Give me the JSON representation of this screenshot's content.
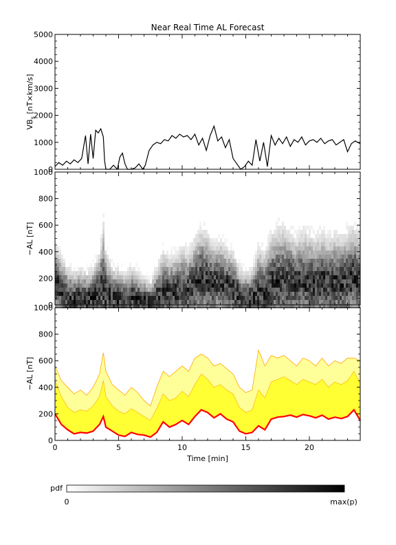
{
  "chart_data": [
    {
      "type": "line",
      "title": "Near Real Time AL Forecast",
      "ylabel_main": "VB",
      "ylabel_sub": "s",
      "ylabel_rest": " [nT×km/s]",
      "xlim": [
        0,
        24
      ],
      "ylim": [
        0,
        5000
      ],
      "yticks": [
        "0",
        "1000",
        "2000",
        "3000",
        "4000",
        "5000"
      ],
      "line_color": "#000000",
      "series": [
        {
          "x": [
            0,
            0.3,
            0.6,
            0.9,
            1.2,
            1.5,
            1.8,
            2.1,
            2.4,
            2.6,
            2.8,
            3.0,
            3.2,
            3.4,
            3.6,
            3.8,
            3.9,
            4.0,
            4.3,
            4.6,
            4.9,
            5.1,
            5.3,
            5.5,
            5.7,
            6.0,
            6.3,
            6.6,
            6.9,
            7.1,
            7.4,
            7.7,
            8.0,
            8.3,
            8.6,
            8.9,
            9.2,
            9.5,
            9.8,
            10.1,
            10.4,
            10.7,
            11.0,
            11.3,
            11.6,
            11.9,
            12.2,
            12.5,
            12.8,
            13.1,
            13.4,
            13.7,
            14.0,
            14.3,
            14.6,
            14.9,
            15.2,
            15.5,
            15.8,
            16.1,
            16.4,
            16.7,
            17.0,
            17.3,
            17.6,
            17.9,
            18.2,
            18.5,
            18.8,
            19.1,
            19.4,
            19.7,
            20.0,
            20.3,
            20.6,
            20.9,
            21.2,
            21.5,
            21.8,
            22.1,
            22.4,
            22.7,
            23.0,
            23.3,
            23.6,
            24.0
          ],
          "y": [
            100,
            250,
            150,
            300,
            200,
            350,
            250,
            400,
            1250,
            200,
            1300,
            400,
            1450,
            1350,
            1500,
            1200,
            300,
            0,
            0,
            150,
            0,
            450,
            600,
            200,
            0,
            0,
            50,
            200,
            0,
            150,
            700,
            900,
            1000,
            950,
            1100,
            1050,
            1250,
            1150,
            1300,
            1200,
            1250,
            1100,
            1300,
            900,
            1150,
            700,
            1250,
            1600,
            1050,
            1200,
            800,
            1100,
            400,
            200,
            0,
            100,
            300,
            150,
            1100,
            300,
            1000,
            100,
            1250,
            900,
            1150,
            950,
            1200,
            850,
            1100,
            1000,
            1200,
            900,
            1050,
            1100,
            1000,
            1150,
            950,
            1050,
            1100,
            900,
            1000,
            1100,
            650,
            950,
            1050,
            950
          ]
        }
      ]
    },
    {
      "type": "heatmap",
      "ylabel": "−AL [nT]",
      "xlim": [
        0,
        24
      ],
      "ylim": [
        0,
        1000
      ],
      "yticks": [
        "0",
        "200",
        "400",
        "600",
        "800",
        "1000"
      ],
      "color_scale": "pdf white to black",
      "median": {
        "x": [
          0,
          0.5,
          1,
          1.5,
          2,
          2.5,
          3,
          3.5,
          3.8,
          4,
          4.5,
          5,
          5.5,
          6,
          6.5,
          7,
          7.5,
          8,
          8.5,
          9,
          9.5,
          10,
          10.5,
          11,
          11.5,
          12,
          12.5,
          13,
          13.5,
          14,
          14.5,
          15,
          15.5,
          16,
          16.5,
          17,
          17.5,
          18,
          18.5,
          19,
          19.5,
          20,
          20.5,
          21,
          21.5,
          22,
          22.5,
          23,
          23.5,
          24
        ],
        "y": [
          160,
          110,
          60,
          40,
          50,
          45,
          60,
          100,
          140,
          80,
          60,
          40,
          35,
          50,
          40,
          30,
          20,
          50,
          110,
          80,
          100,
          120,
          100,
          170,
          200,
          180,
          150,
          190,
          140,
          120,
          60,
          40,
          50,
          90,
          70,
          150,
          160,
          170,
          175,
          165,
          180,
          170,
          160,
          175,
          150,
          165,
          160,
          170,
          220,
          150
        ]
      },
      "upper": {
        "x": [
          0,
          0.5,
          1,
          1.5,
          2,
          2.5,
          3,
          3.5,
          3.8,
          4,
          4.5,
          5,
          5.5,
          6,
          6.5,
          7,
          7.5,
          8,
          8.5,
          9,
          9.5,
          10,
          10.5,
          11,
          11.5,
          12,
          12.5,
          13,
          13.5,
          14,
          14.5,
          15,
          15.5,
          16,
          16.5,
          17,
          17.5,
          18,
          18.5,
          19,
          19.5,
          20,
          20.5,
          21,
          21.5,
          22,
          22.5,
          23,
          23.5,
          24
        ],
        "y": [
          480,
          380,
          300,
          260,
          280,
          260,
          300,
          400,
          650,
          420,
          300,
          280,
          250,
          300,
          260,
          220,
          180,
          300,
          420,
          380,
          400,
          450,
          420,
          520,
          600,
          560,
          480,
          500,
          450,
          420,
          300,
          260,
          280,
          460,
          420,
          560,
          600,
          620,
          560,
          520,
          580,
          560,
          520,
          580,
          520,
          560,
          540,
          580,
          620,
          560
        ]
      }
    },
    {
      "type": "area",
      "ylabel": "−AL [nT]",
      "xlabel": "Time [min]",
      "xlim": [
        0,
        24
      ],
      "ylim": [
        0,
        1000
      ],
      "xticks": [
        "0",
        "5",
        "10",
        "15",
        "20"
      ],
      "yticks": [
        "0",
        "200",
        "400",
        "600",
        "800",
        "1000"
      ],
      "median_color": "#ff0000",
      "band_color": "#ffff33",
      "outer_band_color": "#ffff99",
      "edge_color": "#ffa500",
      "series": [
        {
          "role": "median",
          "x": [
            0,
            0.5,
            1,
            1.5,
            2,
            2.5,
            3,
            3.5,
            3.8,
            4,
            4.5,
            5,
            5.5,
            6,
            6.5,
            7,
            7.5,
            8,
            8.5,
            9,
            9.5,
            10,
            10.5,
            11,
            11.5,
            12,
            12.5,
            13,
            13.5,
            14,
            14.5,
            15,
            15.5,
            16,
            16.5,
            17,
            17.5,
            18,
            18.5,
            19,
            19.5,
            20,
            20.5,
            21,
            21.5,
            22,
            22.5,
            23,
            23.5,
            24
          ],
          "y": [
            200,
            120,
            80,
            50,
            60,
            55,
            70,
            120,
            180,
            100,
            70,
            40,
            30,
            60,
            45,
            40,
            25,
            60,
            140,
            100,
            120,
            150,
            120,
            180,
            230,
            210,
            170,
            200,
            160,
            140,
            70,
            50,
            60,
            110,
            80,
            160,
            175,
            180,
            190,
            175,
            195,
            185,
            170,
            190,
            160,
            175,
            165,
            180,
            230,
            150
          ]
        },
        {
          "role": "band_upper",
          "x": [
            0,
            0.5,
            1,
            1.5,
            2,
            2.5,
            3,
            3.5,
            3.8,
            4,
            4.5,
            5,
            5.5,
            6,
            6.5,
            7,
            7.5,
            8,
            8.5,
            9,
            9.5,
            10,
            10.5,
            11,
            11.5,
            12,
            12.5,
            13,
            13.5,
            14,
            14.5,
            15,
            15.5,
            16,
            16.5,
            17,
            17.5,
            18,
            18.5,
            19,
            19.5,
            20,
            20.5,
            21,
            21.5,
            22,
            22.5,
            23,
            23.5,
            24
          ],
          "y": [
            450,
            330,
            250,
            210,
            230,
            220,
            260,
            330,
            450,
            330,
            260,
            220,
            200,
            240,
            210,
            180,
            150,
            240,
            350,
            300,
            320,
            370,
            330,
            420,
            500,
            460,
            400,
            420,
            380,
            350,
            250,
            210,
            230,
            380,
            320,
            440,
            460,
            480,
            450,
            420,
            460,
            440,
            420,
            460,
            400,
            440,
            420,
            450,
            520,
            430
          ]
        },
        {
          "role": "outer_upper",
          "x": [
            0,
            0.5,
            1,
            1.5,
            2,
            2.5,
            3,
            3.5,
            3.8,
            4,
            4.5,
            5,
            5.5,
            6,
            6.5,
            7,
            7.5,
            8,
            8.5,
            9,
            9.5,
            10,
            10.5,
            11,
            11.5,
            12,
            12.5,
            13,
            13.5,
            14,
            14.5,
            15,
            15.5,
            16,
            16.5,
            17,
            17.5,
            18,
            18.5,
            19,
            19.5,
            20,
            20.5,
            21,
            21.5,
            22,
            22.5,
            23,
            23.5,
            24
          ],
          "y": [
            560,
            450,
            400,
            350,
            380,
            340,
            400,
            500,
            660,
            520,
            420,
            380,
            340,
            400,
            360,
            300,
            260,
            400,
            520,
            480,
            520,
            560,
            520,
            620,
            650,
            620,
            560,
            580,
            540,
            500,
            400,
            360,
            380,
            680,
            560,
            640,
            620,
            640,
            600,
            560,
            620,
            600,
            560,
            620,
            560,
            600,
            580,
            620,
            620,
            600
          ]
        }
      ]
    }
  ],
  "colorbar": {
    "label": "pdf",
    "min_label": "0",
    "max_label": "max(p)"
  }
}
